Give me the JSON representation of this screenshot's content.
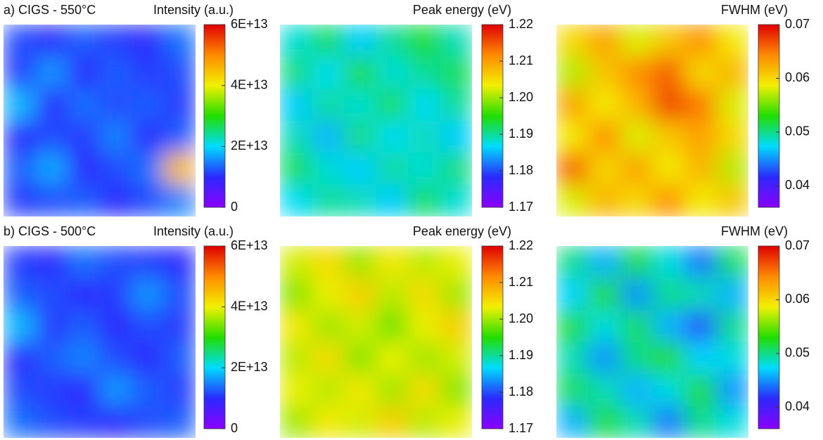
{
  "chart_data": [
    {
      "type": "heatmap",
      "panel_label": "a) CIGS - 550°C",
      "colorbar_label": "Intensity (a.u.)",
      "colormap": [
        "#8a00ff",
        "#2a2aff",
        "#00dcff",
        "#22dd00",
        "#f2f000",
        "#ff8a00",
        "#e00000"
      ],
      "zlim": [
        0,
        60000000000000.0
      ],
      "zticks": [
        0,
        {
          "value": 20000000000000.0,
          "label": "2E+13"
        },
        {
          "value": 40000000000000.0,
          "label": "4E+13"
        },
        {
          "value": 60000000000000.0,
          "label": "6E+13"
        }
      ],
      "values": [
        [
          12000000000000.0,
          10000000000000.0,
          13000000000000.0,
          11000000000000.0,
          10000000000000.0,
          14000000000000.0
        ],
        [
          11000000000000.0,
          16000000000000.0,
          10000000000000.0,
          13000000000000.0,
          11000000000000.0,
          12000000000000.0
        ],
        [
          18000000000000.0,
          10000000000000.0,
          14000000000000.0,
          12000000000000.0,
          13000000000000.0,
          11000000000000.0
        ],
        [
          10000000000000.0,
          12000000000000.0,
          11000000000000.0,
          15000000000000.0,
          10000000000000.0,
          13000000000000.0
        ],
        [
          13000000000000.0,
          17000000000000.0,
          10000000000000.0,
          12000000000000.0,
          14000000000000.0,
          45000000000000.0
        ],
        [
          11000000000000.0,
          12000000000000.0,
          13000000000000.0,
          10000000000000.0,
          12000000000000.0,
          15000000000000.0
        ]
      ]
    },
    {
      "type": "heatmap",
      "colorbar_label": "Peak energy (eV)",
      "colormap": [
        "#8a00ff",
        "#2a2aff",
        "#00dcff",
        "#22dd00",
        "#f2f000",
        "#ff8a00",
        "#e00000"
      ],
      "zlim": [
        1.17,
        1.22
      ],
      "zticks": [
        1.17,
        1.18,
        1.19,
        {
          "value": 1.2,
          "label": "1.20"
        },
        1.21,
        1.22
      ],
      "values": [
        [
          1.188,
          1.192,
          1.186,
          1.19,
          1.194,
          1.189
        ],
        [
          1.191,
          1.187,
          1.193,
          1.188,
          1.19,
          1.192
        ],
        [
          1.186,
          1.19,
          1.188,
          1.192,
          1.187,
          1.19
        ],
        [
          1.189,
          1.185,
          1.191,
          1.187,
          1.189,
          1.186
        ],
        [
          1.192,
          1.188,
          1.186,
          1.19,
          1.188,
          1.191
        ],
        [
          1.187,
          1.19,
          1.189,
          1.186,
          1.192,
          1.188
        ]
      ]
    },
    {
      "type": "heatmap",
      "colorbar_label": "FWHM (eV)",
      "colormap": [
        "#8a00ff",
        "#2a2aff",
        "#00dcff",
        "#22dd00",
        "#f2f000",
        "#ff8a00",
        "#e00000"
      ],
      "zlim": [
        0.036,
        0.07
      ],
      "zticks": [
        0.04,
        0.05,
        0.06,
        0.07
      ],
      "values": [
        [
          0.06,
          0.063,
          0.058,
          0.061,
          0.064,
          0.059
        ],
        [
          0.057,
          0.061,
          0.064,
          0.066,
          0.06,
          0.062
        ],
        [
          0.063,
          0.059,
          0.062,
          0.067,
          0.065,
          0.058
        ],
        [
          0.059,
          0.064,
          0.058,
          0.061,
          0.063,
          0.06
        ],
        [
          0.066,
          0.06,
          0.063,
          0.059,
          0.062,
          0.057
        ],
        [
          0.058,
          0.062,
          0.06,
          0.064,
          0.059,
          0.061
        ]
      ]
    },
    {
      "type": "heatmap",
      "panel_label": "b) CIGS - 500°C",
      "colorbar_label": "Intensity (a.u.)",
      "colormap": [
        "#8a00ff",
        "#2a2aff",
        "#00dcff",
        "#22dd00",
        "#f2f000",
        "#ff8a00",
        "#e00000"
      ],
      "zlim": [
        0,
        60000000000000.0
      ],
      "zticks": [
        0,
        {
          "value": 20000000000000.0,
          "label": "2E+13"
        },
        {
          "value": 40000000000000.0,
          "label": "4E+13"
        },
        {
          "value": 60000000000000.0,
          "label": "6E+13"
        }
      ],
      "values": [
        [
          11000000000000.0,
          10000000000000.0,
          14000000000000.0,
          12000000000000.0,
          11000000000000.0,
          10000000000000.0
        ],
        [
          13000000000000.0,
          12000000000000.0,
          10000000000000.0,
          11000000000000.0,
          16000000000000.0,
          12000000000000.0
        ],
        [
          18000000000000.0,
          11000000000000.0,
          13000000000000.0,
          10000000000000.0,
          12000000000000.0,
          11000000000000.0
        ],
        [
          10000000000000.0,
          13000000000000.0,
          15000000000000.0,
          12000000000000.0,
          10000000000000.0,
          13000000000000.0
        ],
        [
          12000000000000.0,
          11000000000000.0,
          10000000000000.0,
          16000000000000.0,
          13000000000000.0,
          11000000000000.0
        ],
        [
          14000000000000.0,
          12000000000000.0,
          11000000000000.0,
          10000000000000.0,
          12000000000000.0,
          13000000000000.0
        ]
      ]
    },
    {
      "type": "heatmap",
      "colorbar_label": "Peak energy (eV)",
      "colormap": [
        "#8a00ff",
        "#2a2aff",
        "#00dcff",
        "#22dd00",
        "#f2f000",
        "#ff8a00",
        "#e00000"
      ],
      "zlim": [
        1.17,
        1.22
      ],
      "zticks": [
        1.17,
        1.18,
        1.19,
        {
          "value": 1.2,
          "label": "1.20"
        },
        1.21,
        1.22
      ],
      "values": [
        [
          1.202,
          1.205,
          1.2,
          1.204,
          1.201,
          1.203
        ],
        [
          1.199,
          1.203,
          1.206,
          1.201,
          1.205,
          1.2
        ],
        [
          1.204,
          1.2,
          1.202,
          1.198,
          1.203,
          1.206
        ],
        [
          1.201,
          1.205,
          1.199,
          1.203,
          1.2,
          1.202
        ],
        [
          1.203,
          1.201,
          1.204,
          1.2,
          1.205,
          1.199
        ],
        [
          1.2,
          1.204,
          1.202,
          1.206,
          1.201,
          1.203
        ]
      ]
    },
    {
      "type": "heatmap",
      "colorbar_label": "FWHM (eV)",
      "colormap": [
        "#8a00ff",
        "#2a2aff",
        "#00dcff",
        "#22dd00",
        "#f2f000",
        "#ff8a00",
        "#e00000"
      ],
      "zlim": [
        0.036,
        0.07
      ],
      "zticks": [
        0.04,
        0.05,
        0.06,
        0.07
      ],
      "values": [
        [
          0.05,
          0.046,
          0.052,
          0.048,
          0.044,
          0.051
        ],
        [
          0.047,
          0.053,
          0.045,
          0.05,
          0.049,
          0.046
        ],
        [
          0.052,
          0.048,
          0.051,
          0.046,
          0.043,
          0.05
        ],
        [
          0.049,
          0.045,
          0.05,
          0.053,
          0.047,
          0.048
        ],
        [
          0.051,
          0.049,
          0.046,
          0.048,
          0.052,
          0.045
        ],
        [
          0.046,
          0.052,
          0.049,
          0.044,
          0.05,
          0.048
        ]
      ]
    }
  ]
}
